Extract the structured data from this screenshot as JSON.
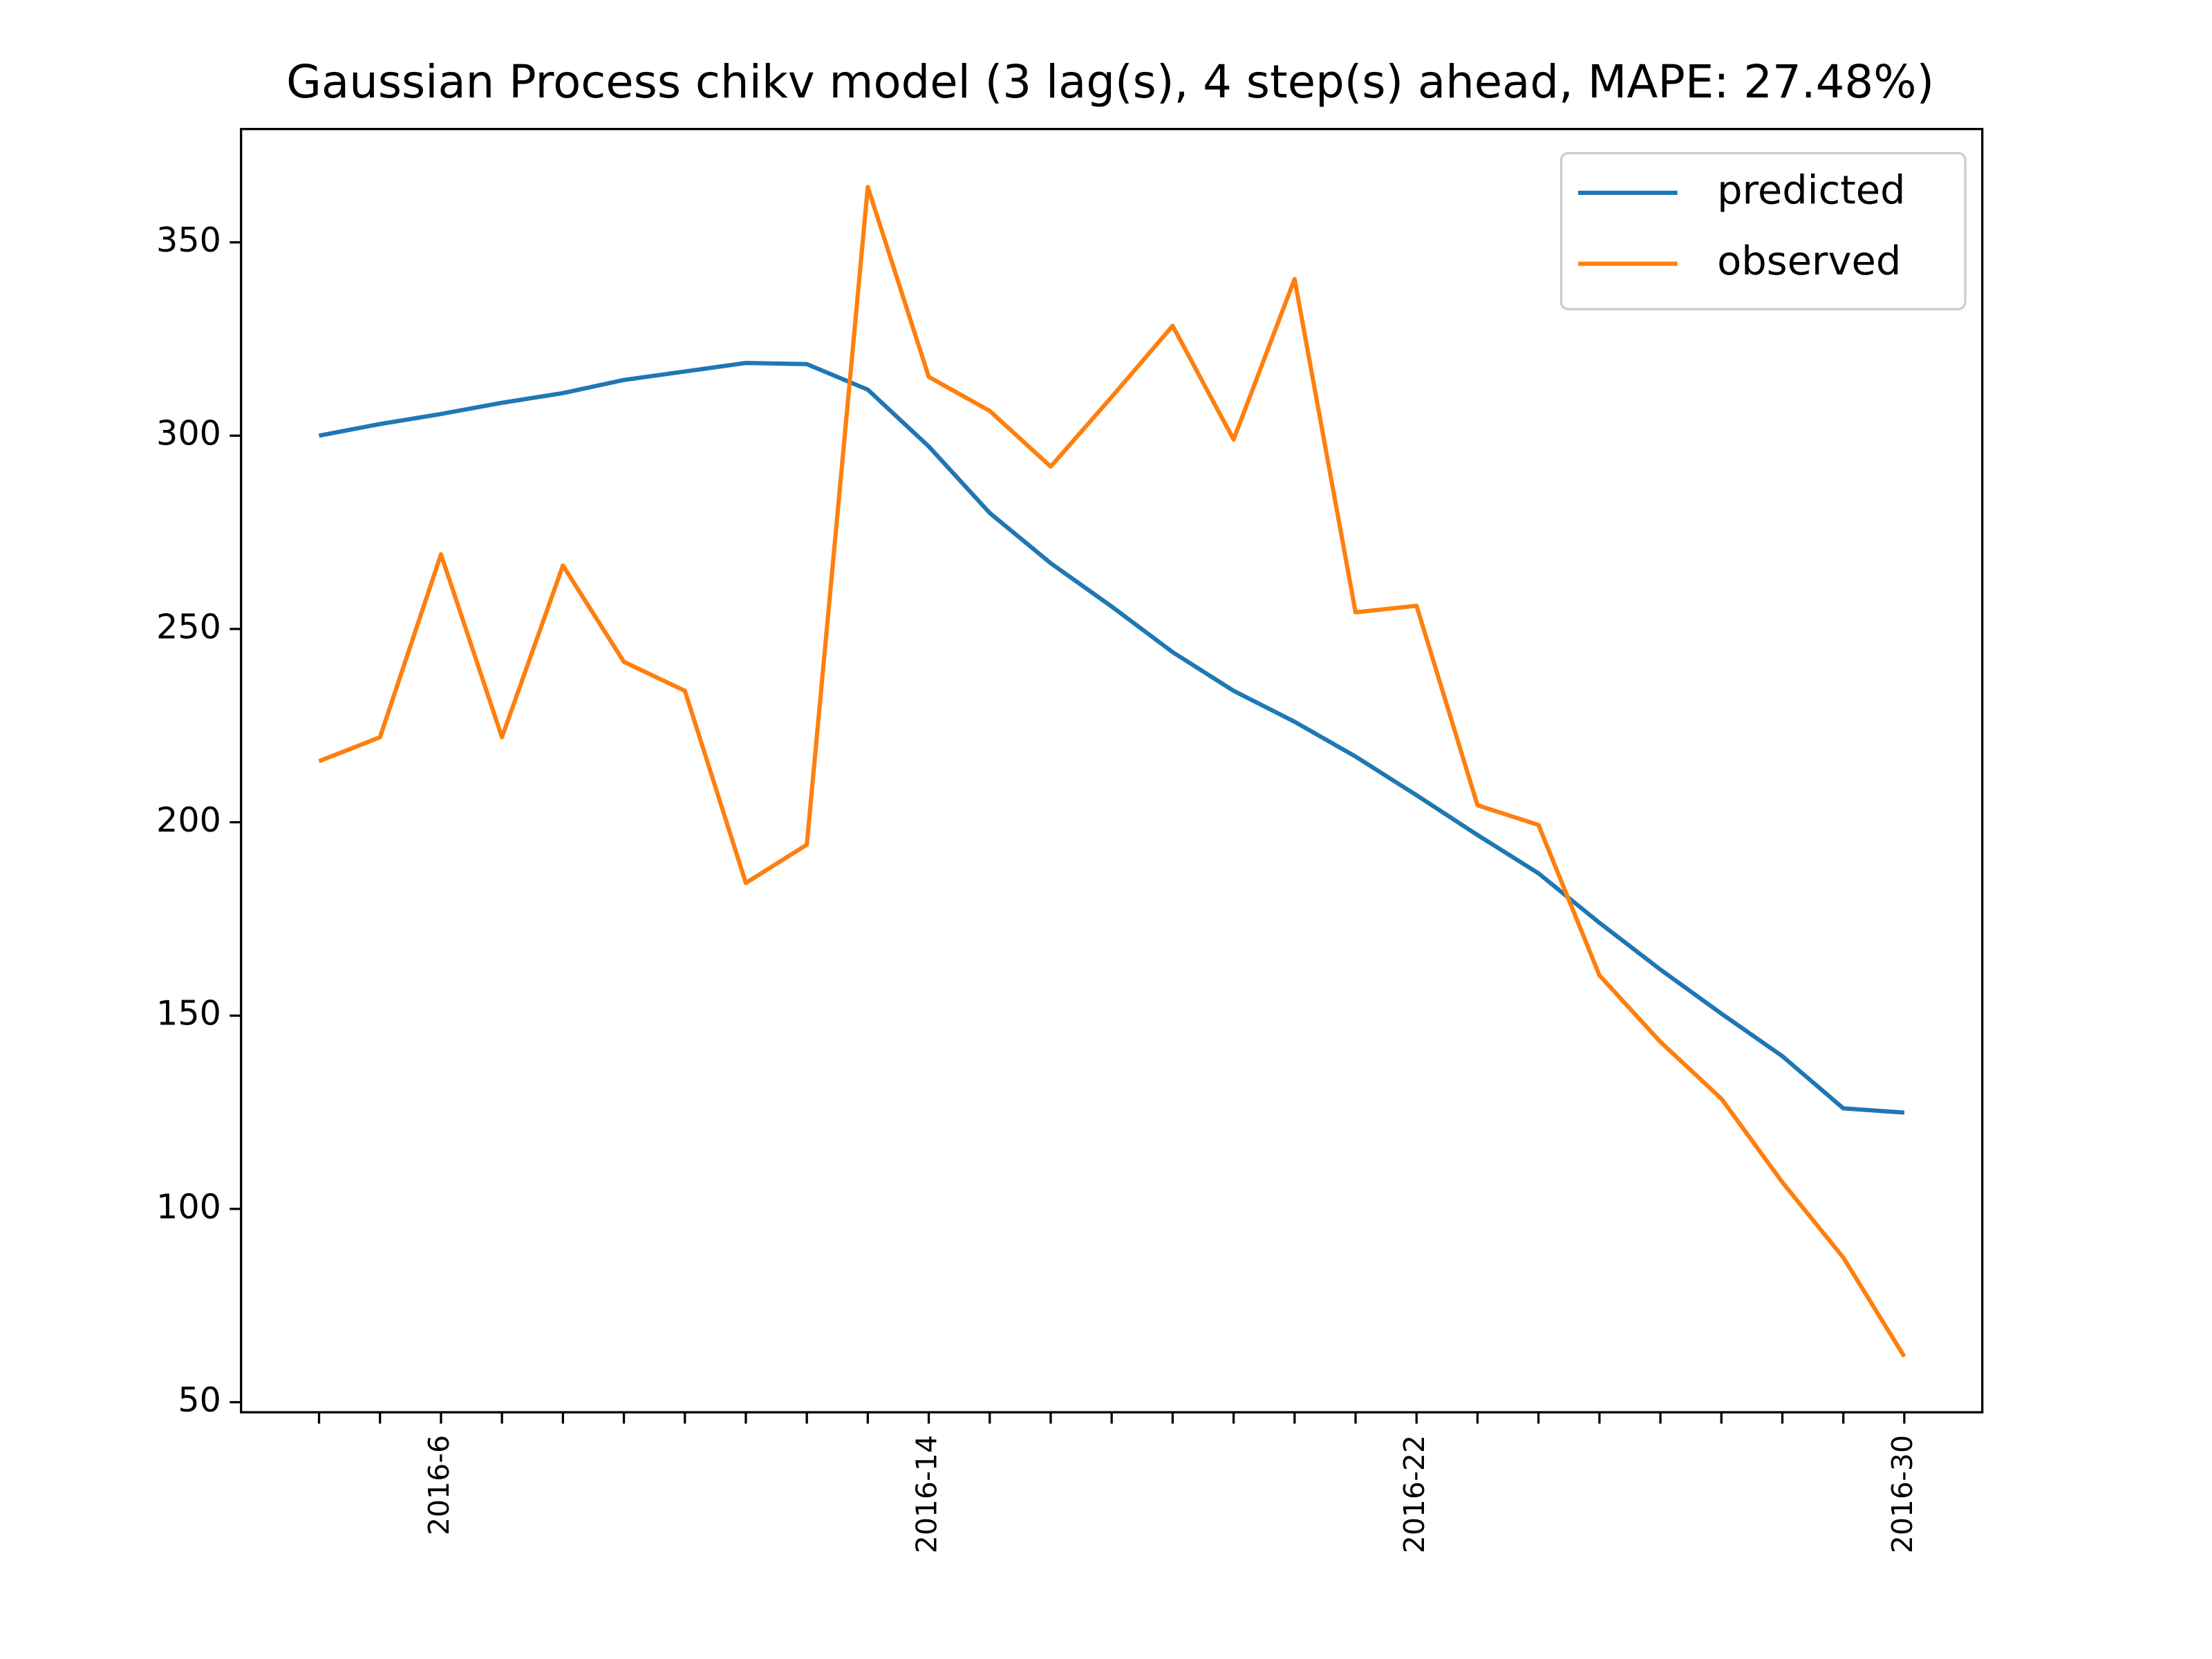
{
  "chart_data": {
    "type": "line",
    "title": "Gaussian Process chikv model (3 lag(s), 4 step(s) ahead, MAPE: 27.48%)",
    "categories": [
      null,
      null,
      "2016-6",
      null,
      null,
      null,
      null,
      null,
      null,
      null,
      "2016-14",
      null,
      null,
      null,
      null,
      null,
      null,
      null,
      "2016-22",
      null,
      null,
      null,
      null,
      null,
      null,
      null,
      "2016-30"
    ],
    "series": [
      {
        "name": "predicted",
        "color": "#1f77b4",
        "values": [
          300,
          303,
          305.6,
          308.5,
          311,
          314.4,
          316.6,
          318.8,
          318.5,
          311.9,
          297.2,
          280,
          267,
          255.8,
          244,
          234,
          226,
          217,
          207,
          196.7,
          186.8,
          174,
          161.9,
          150.5,
          139.5,
          126,
          124.9
        ]
      },
      {
        "name": "observed",
        "color": "#ff7f0e",
        "values": [
          215.8,
          222,
          269.3,
          222,
          266.4,
          241.5,
          234,
          184.3,
          194.2,
          364.3,
          315.2,
          306.4,
          292,
          310,
          328.4,
          299,
          340.5,
          254.3,
          256,
          204.4,
          199.3,
          160.4,
          143.2,
          128.5,
          106.9,
          87.4,
          61.8
        ]
      }
    ],
    "ylim": [
      47.4,
      379.3
    ],
    "yticks": [
      50,
      100,
      150,
      200,
      250,
      300,
      350
    ],
    "legend": "upper right",
    "grid": false
  }
}
